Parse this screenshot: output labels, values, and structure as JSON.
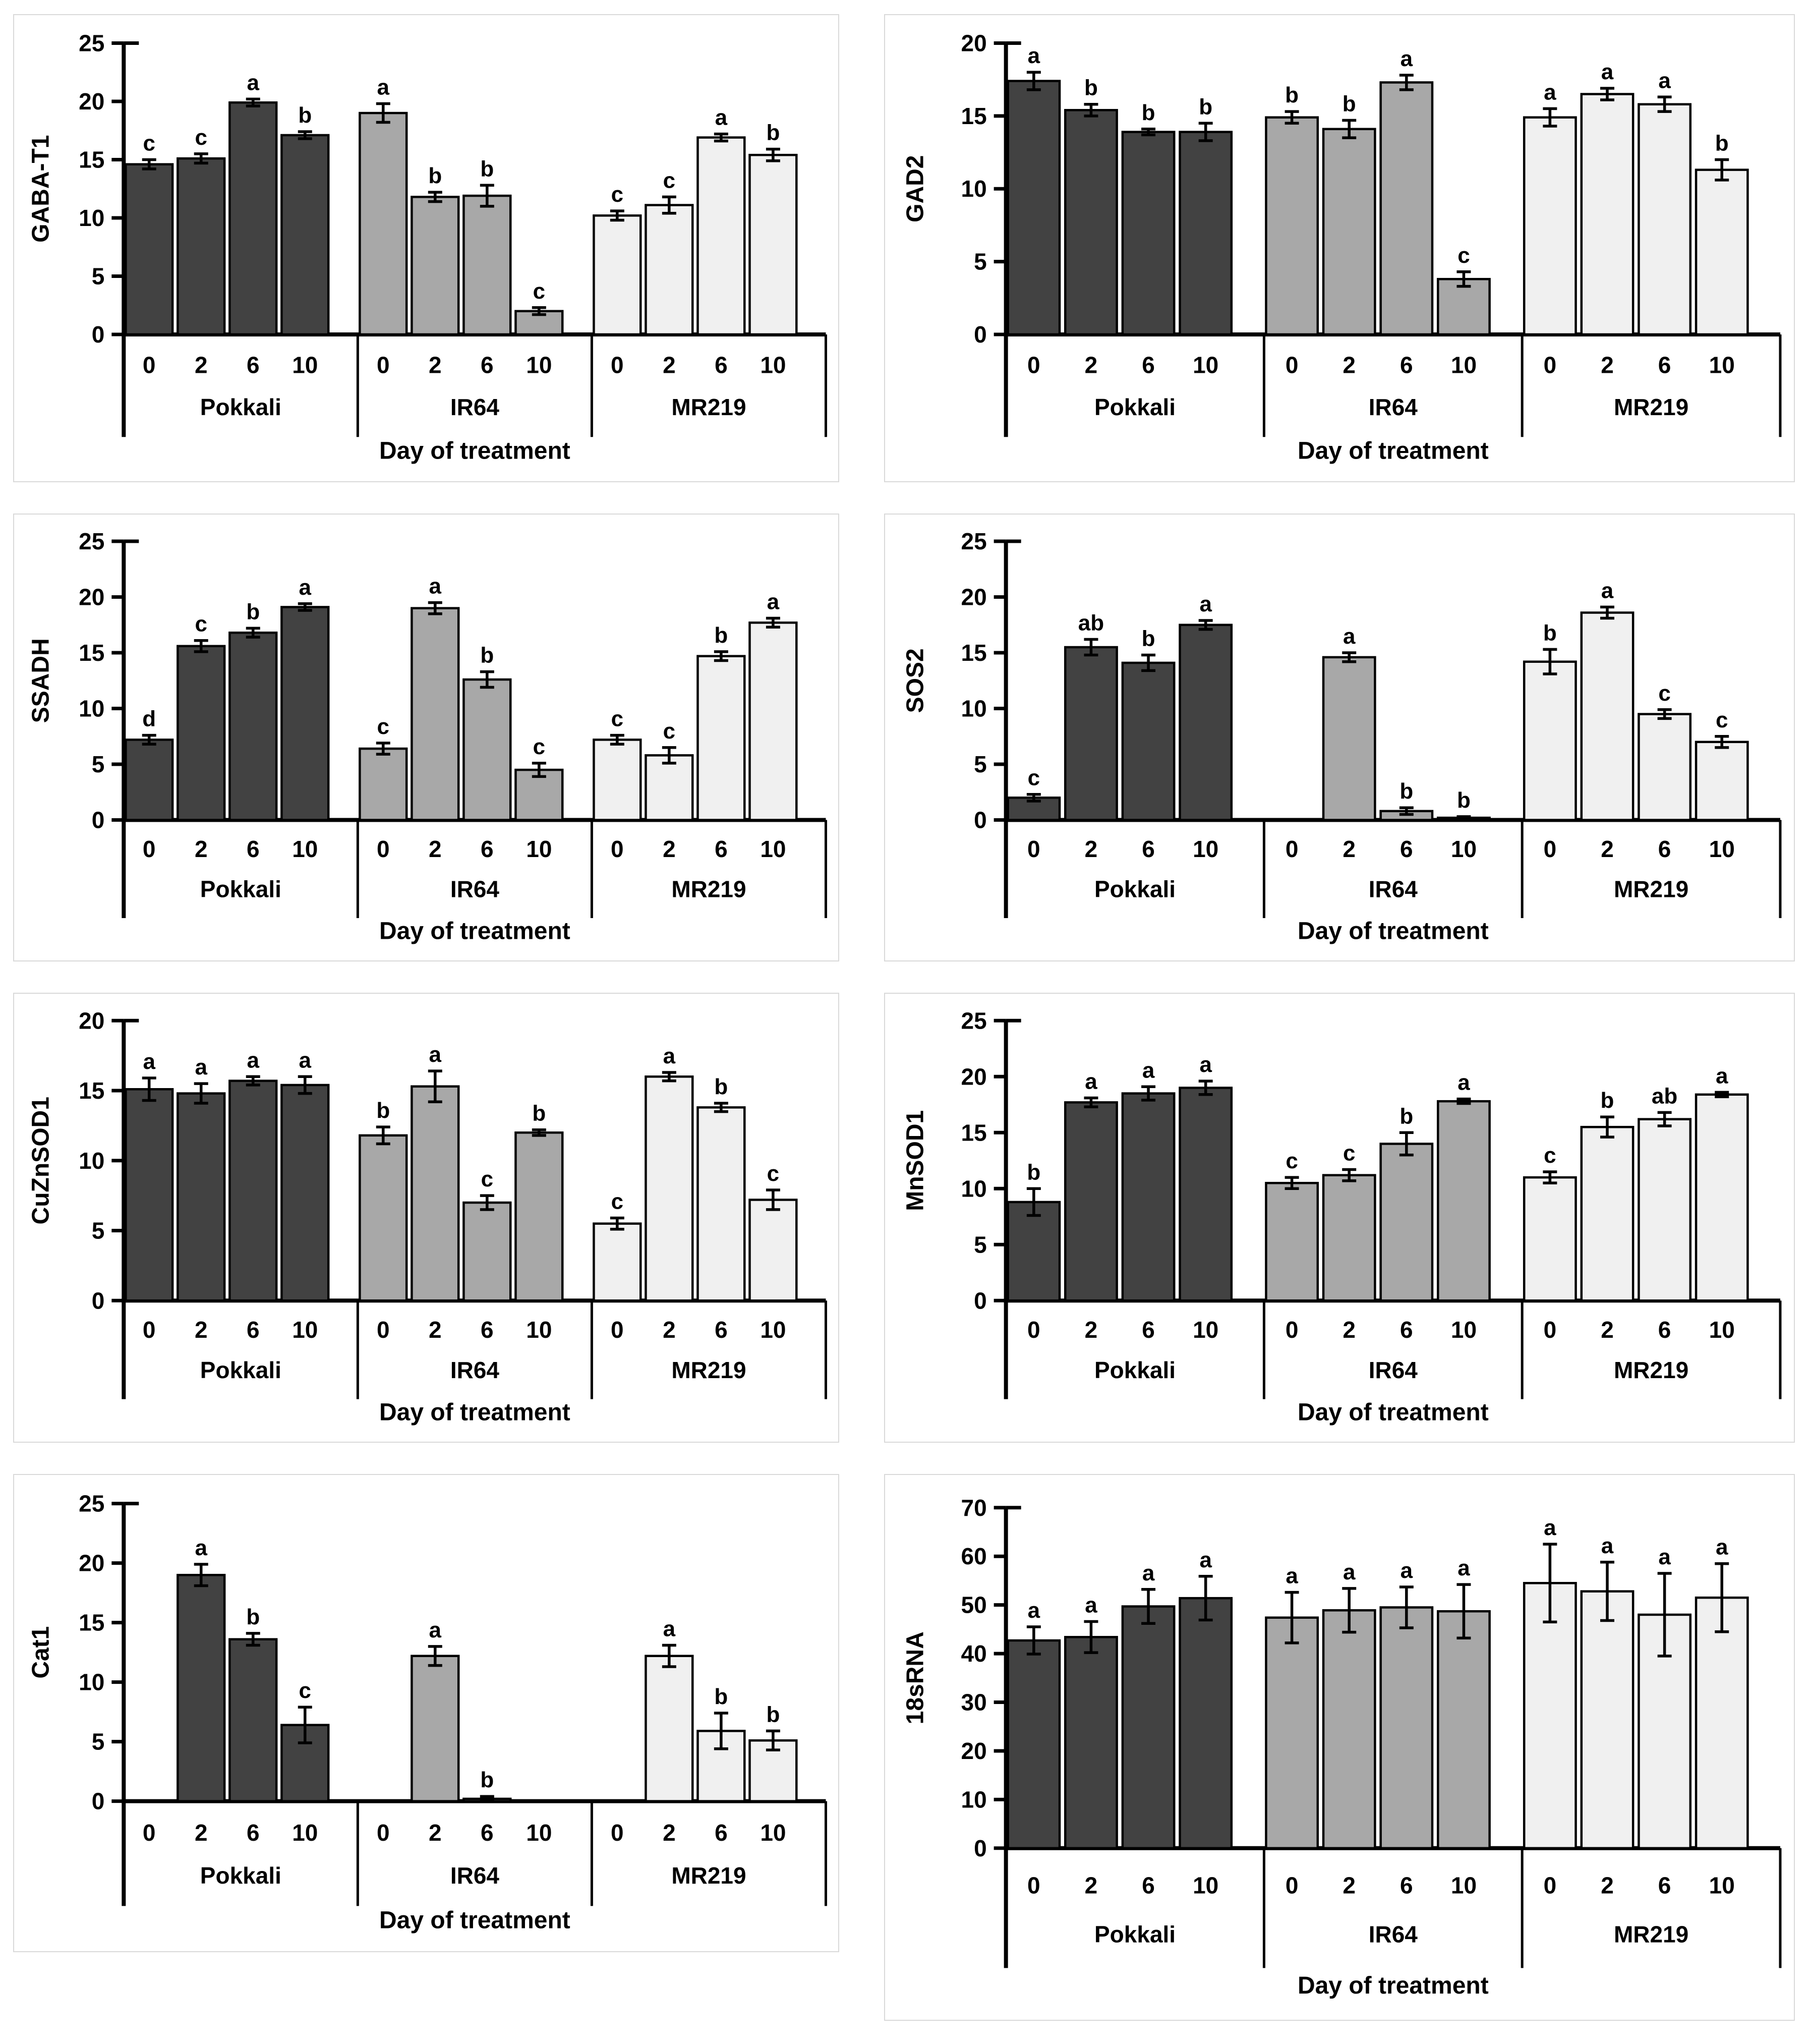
{
  "figure": {
    "xlabel": "Day of treatment",
    "group_names": [
      "Pokkali",
      "IR64",
      "MR219"
    ],
    "categories": [
      "0",
      "2",
      "6",
      "10"
    ],
    "colors": {
      "Pokkali": "#424242",
      "IR64": "#a8a8a8",
      "MR219": "#f0f0f0",
      "bar_outline": "#000000",
      "axis": "#000000",
      "panel_border": "#d9d9d9"
    }
  },
  "chart_data": [
    {
      "type": "bar",
      "ylabel": "GABA-T1",
      "ylim": [
        0,
        25
      ],
      "ytick_step": 5,
      "xlabel": "Day of treatment",
      "categories": [
        "0",
        "2",
        "6",
        "10"
      ],
      "series": [
        {
          "name": "Pokkali",
          "values": [
            14.6,
            15.1,
            19.9,
            17.1
          ],
          "errors": [
            0.4,
            0.4,
            0.3,
            0.3
          ],
          "letters": [
            "c",
            "c",
            "a",
            "b"
          ]
        },
        {
          "name": "IR64",
          "values": [
            19.0,
            11.8,
            11.9,
            2.0
          ],
          "errors": [
            0.8,
            0.4,
            0.9,
            0.3
          ],
          "letters": [
            "a",
            "b",
            "b",
            "c"
          ]
        },
        {
          "name": "MR219",
          "values": [
            10.2,
            11.1,
            16.9,
            15.4
          ],
          "errors": [
            0.4,
            0.7,
            0.3,
            0.5
          ],
          "letters": [
            "c",
            "c",
            "a",
            "b"
          ]
        }
      ]
    },
    {
      "type": "bar",
      "ylabel": "GAD2",
      "ylim": [
        0,
        20
      ],
      "ytick_step": 5,
      "xlabel": "Day of treatment",
      "categories": [
        "0",
        "2",
        "6",
        "10"
      ],
      "series": [
        {
          "name": "Pokkali",
          "values": [
            17.4,
            15.4,
            13.9,
            13.9
          ],
          "errors": [
            0.6,
            0.4,
            0.2,
            0.6
          ],
          "letters": [
            "a",
            "b",
            "b",
            "b"
          ]
        },
        {
          "name": "IR64",
          "values": [
            14.9,
            14.1,
            17.3,
            3.8
          ],
          "errors": [
            0.4,
            0.6,
            0.5,
            0.5
          ],
          "letters": [
            "b",
            "b",
            "a",
            "c"
          ]
        },
        {
          "name": "MR219",
          "values": [
            14.9,
            16.5,
            15.8,
            11.3
          ],
          "errors": [
            0.6,
            0.4,
            0.5,
            0.7
          ],
          "letters": [
            "a",
            "a",
            "a",
            "b"
          ]
        }
      ]
    },
    {
      "type": "bar",
      "ylabel": "SSADH",
      "ylim": [
        0,
        25
      ],
      "ytick_step": 5,
      "xlabel": "Day of treatment",
      "categories": [
        "0",
        "2",
        "6",
        "10"
      ],
      "series": [
        {
          "name": "Pokkali",
          "values": [
            7.2,
            15.6,
            16.8,
            19.1
          ],
          "errors": [
            0.4,
            0.5,
            0.4,
            0.3
          ],
          "letters": [
            "d",
            "c",
            "b",
            "a"
          ]
        },
        {
          "name": "IR64",
          "values": [
            6.4,
            19.0,
            12.6,
            4.5
          ],
          "errors": [
            0.5,
            0.5,
            0.7,
            0.6
          ],
          "letters": [
            "c",
            "a",
            "b",
            "c"
          ]
        },
        {
          "name": "MR219",
          "values": [
            7.2,
            5.8,
            14.7,
            17.7
          ],
          "errors": [
            0.4,
            0.7,
            0.4,
            0.4
          ],
          "letters": [
            "c",
            "c",
            "b",
            "a"
          ]
        }
      ]
    },
    {
      "type": "bar",
      "ylabel": "SOS2",
      "ylim": [
        0,
        25
      ],
      "ytick_step": 5,
      "xlabel": "Day of treatment",
      "categories": [
        "0",
        "2",
        "6",
        "10"
      ],
      "series": [
        {
          "name": "Pokkali",
          "values": [
            2.0,
            15.5,
            14.1,
            17.5
          ],
          "errors": [
            0.3,
            0.7,
            0.7,
            0.4
          ],
          "letters": [
            "c",
            "ab",
            "b",
            "a"
          ]
        },
        {
          "name": "IR64",
          "values": [
            0,
            14.6,
            0.8,
            0.2
          ],
          "errors": [
            0,
            0.4,
            0.3,
            0.1
          ],
          "letters": [
            null,
            "a",
            "b",
            "b"
          ]
        },
        {
          "name": "MR219",
          "values": [
            14.2,
            18.6,
            9.5,
            7.0
          ],
          "errors": [
            1.1,
            0.5,
            0.4,
            0.5
          ],
          "letters": [
            "b",
            "a",
            "c",
            "c"
          ]
        }
      ]
    },
    {
      "type": "bar",
      "ylabel": "CuZnSOD1",
      "ylim": [
        0,
        20
      ],
      "ytick_step": 5,
      "xlabel": "Day of treatment",
      "categories": [
        "0",
        "2",
        "6",
        "10"
      ],
      "series": [
        {
          "name": "Pokkali",
          "values": [
            15.1,
            14.8,
            15.7,
            15.4
          ],
          "errors": [
            0.8,
            0.7,
            0.3,
            0.6
          ],
          "letters": [
            "a",
            "a",
            "a",
            "a"
          ]
        },
        {
          "name": "IR64",
          "values": [
            11.8,
            15.3,
            7.0,
            12.0
          ],
          "errors": [
            0.6,
            1.1,
            0.5,
            0.2
          ],
          "letters": [
            "b",
            "a",
            "c",
            "b"
          ]
        },
        {
          "name": "MR219",
          "values": [
            5.5,
            16.0,
            13.8,
            7.2
          ],
          "errors": [
            0.4,
            0.3,
            0.3,
            0.7
          ],
          "letters": [
            "c",
            "a",
            "b",
            "c"
          ]
        }
      ]
    },
    {
      "type": "bar",
      "ylabel": "MnSOD1",
      "ylim": [
        0,
        25
      ],
      "ytick_step": 5,
      "xlabel": "Day of treatment",
      "categories": [
        "0",
        "2",
        "6",
        "10"
      ],
      "series": [
        {
          "name": "Pokkali",
          "values": [
            8.8,
            17.7,
            18.5,
            19.0
          ],
          "errors": [
            1.2,
            0.4,
            0.6,
            0.6
          ],
          "letters": [
            "b",
            "a",
            "a",
            "a"
          ]
        },
        {
          "name": "IR64",
          "values": [
            10.5,
            11.2,
            14.0,
            17.8
          ],
          "errors": [
            0.5,
            0.5,
            1.0,
            0.2
          ],
          "letters": [
            "c",
            "c",
            "b",
            "a"
          ]
        },
        {
          "name": "MR219",
          "values": [
            11.0,
            15.5,
            16.2,
            18.4
          ],
          "errors": [
            0.5,
            0.9,
            0.6,
            0.2
          ],
          "letters": [
            "c",
            "b",
            "ab",
            "a"
          ]
        }
      ]
    },
    {
      "type": "bar",
      "ylabel": "Cat1",
      "ylim": [
        0,
        25
      ],
      "ytick_step": 5,
      "xlabel": "Day of treatment",
      "categories": [
        "0",
        "2",
        "6",
        "10"
      ],
      "series": [
        {
          "name": "Pokkali",
          "values": [
            0,
            19.0,
            13.6,
            6.4
          ],
          "errors": [
            0,
            0.9,
            0.5,
            1.5
          ],
          "letters": [
            null,
            "a",
            "b",
            "c"
          ]
        },
        {
          "name": "IR64",
          "values": [
            0,
            12.2,
            0.2,
            0
          ],
          "errors": [
            0,
            0.8,
            0.2,
            0
          ],
          "letters": [
            null,
            "a",
            "b",
            null
          ]
        },
        {
          "name": "MR219",
          "values": [
            0,
            12.2,
            5.9,
            5.1
          ],
          "errors": [
            0,
            0.9,
            1.5,
            0.8
          ],
          "letters": [
            null,
            "a",
            "b",
            "b"
          ]
        }
      ]
    },
    {
      "type": "bar",
      "ylabel": "18sRNA",
      "ylim": [
        0,
        70
      ],
      "ytick_step": 10,
      "xlabel": "Day of treatment",
      "categories": [
        "0",
        "2",
        "6",
        "10"
      ],
      "series": [
        {
          "name": "Pokkali",
          "values": [
            42.7,
            43.4,
            49.7,
            51.4
          ],
          "errors": [
            2.8,
            3.2,
            3.5,
            4.5
          ],
          "letters": [
            "a",
            "a",
            "a",
            "a"
          ]
        },
        {
          "name": "IR64",
          "values": [
            47.4,
            48.9,
            49.5,
            48.7
          ],
          "errors": [
            5.2,
            4.5,
            4.2,
            5.5
          ],
          "letters": [
            "a",
            "a",
            "a",
            "a"
          ]
        },
        {
          "name": "MR219",
          "values": [
            54.5,
            52.8,
            48.0,
            51.5
          ],
          "errors": [
            8.0,
            6.0,
            8.5,
            7.0
          ],
          "letters": [
            "a",
            "a",
            "a",
            "a"
          ]
        }
      ]
    }
  ]
}
